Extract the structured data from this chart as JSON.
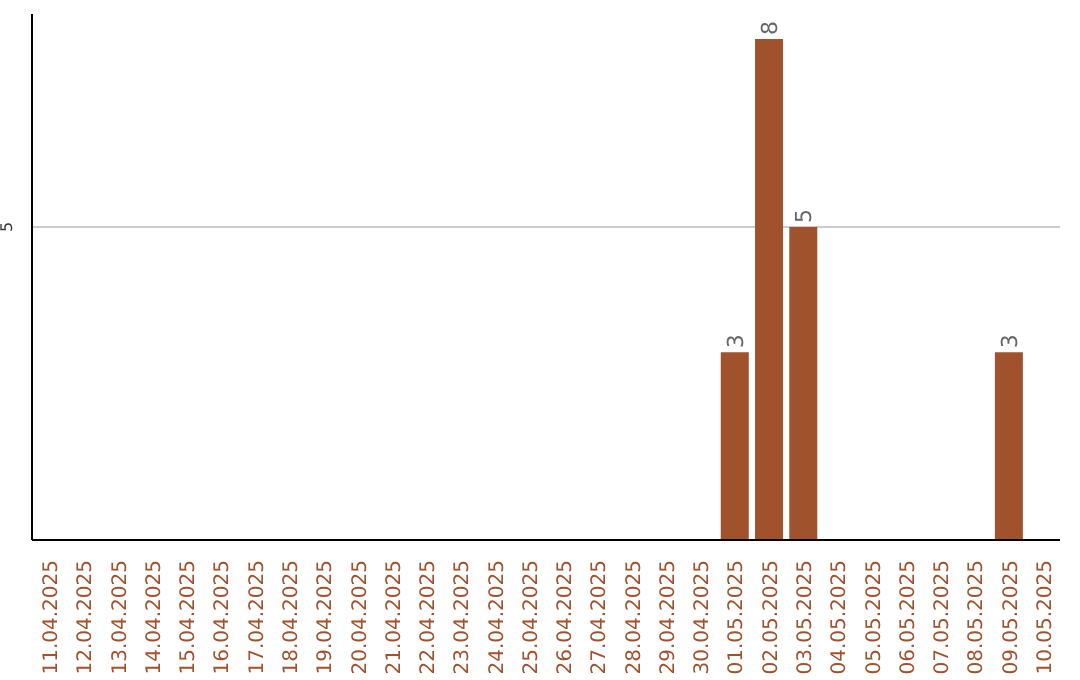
{
  "chart_data": {
    "type": "bar",
    "categories": [
      "11.04.2025",
      "12.04.2025",
      "13.04.2025",
      "14.04.2025",
      "15.04.2025",
      "16.04.2025",
      "17.04.2025",
      "18.04.2025",
      "19.04.2025",
      "20.04.2025",
      "21.04.2025",
      "22.04.2025",
      "23.04.2025",
      "24.04.2025",
      "25.04.2025",
      "26.04.2025",
      "27.04.2025",
      "28.04.2025",
      "29.04.2025",
      "30.04.2025",
      "01.05.2025",
      "02.05.2025",
      "03.05.2025",
      "04.05.2025",
      "05.05.2025",
      "06.05.2025",
      "07.05.2025",
      "08.05.2025",
      "09.05.2025",
      "10.05.2025"
    ],
    "values": [
      null,
      null,
      null,
      null,
      null,
      null,
      null,
      null,
      null,
      null,
      null,
      null,
      null,
      null,
      null,
      null,
      null,
      null,
      null,
      null,
      3,
      8,
      5,
      null,
      null,
      null,
      null,
      null,
      3,
      null
    ],
    "data_labels": true,
    "color": "#a0522d",
    "ylim": [
      0,
      8.4
    ],
    "yticks": [
      5
    ],
    "grid": "y"
  }
}
